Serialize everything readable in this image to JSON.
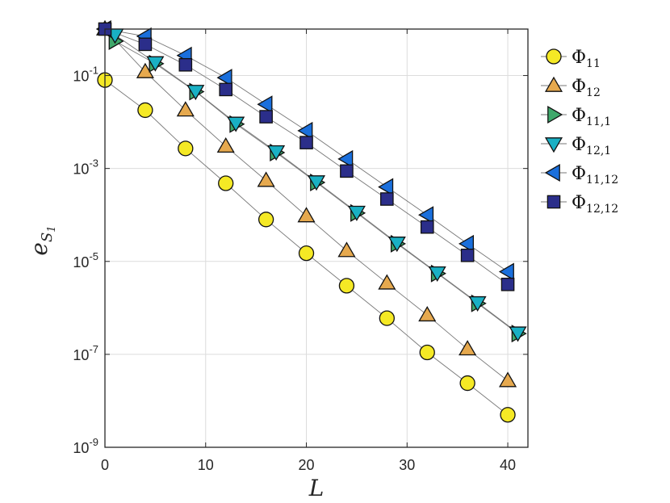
{
  "chart_data": {
    "type": "scatter",
    "x_axis": {
      "label": "L",
      "ticks": [
        "0",
        "10",
        "20",
        "30",
        "40"
      ],
      "range": [
        0,
        42
      ]
    },
    "y_axis": {
      "label_main": "e",
      "label_sub": "S",
      "label_subsub": "1",
      "scale": "log",
      "range": [
        1e-09,
        1
      ],
      "ticks": [
        {
          "base": "10",
          "exp": "-9",
          "value": 1e-09
        },
        {
          "base": "10",
          "exp": "-7",
          "value": 1e-07
        },
        {
          "base": "10",
          "exp": "-5",
          "value": 1e-05
        },
        {
          "base": "10",
          "exp": "-3",
          "value": 0.001
        },
        {
          "base": "10",
          "exp": "-1",
          "value": 0.1
        }
      ]
    },
    "grid": true,
    "legend_position": "outside-right",
    "series": [
      {
        "name": "Φ11",
        "base": "Φ",
        "sub": "11",
        "marker": "circle",
        "color": "#f5e925",
        "x": [
          0,
          4,
          8,
          12,
          16,
          20,
          24,
          28,
          32,
          36,
          40
        ],
        "y": [
          0.08,
          0.018,
          0.0027,
          0.00048,
          8e-05,
          1.5e-05,
          3e-06,
          6e-07,
          1.1e-07,
          2.4e-08,
          5e-09
        ]
      },
      {
        "name": "Φ12",
        "base": "Φ",
        "sub": "12",
        "marker": "triangle-up",
        "color": "#e6a94e",
        "x": [
          0,
          4,
          8,
          12,
          16,
          20,
          24,
          28,
          32,
          36,
          40
        ],
        "y": [
          1.0,
          0.12,
          0.018,
          0.003,
          0.00055,
          9.5e-05,
          1.7e-05,
          3.4e-06,
          7e-07,
          1.3e-07,
          2.7e-08
        ]
      },
      {
        "name": "Φ11,1",
        "base": "Φ",
        "sub": "11,1",
        "marker": "triangle-right",
        "color": "#3fa86b",
        "x": [
          1,
          5,
          9,
          13,
          17,
          21,
          25,
          29,
          33,
          37,
          41
        ],
        "y": [
          0.55,
          0.18,
          0.045,
          0.009,
          0.0022,
          0.0005,
          0.00011,
          2.4e-05,
          5.5e-06,
          1.25e-06,
          2.8e-07
        ]
      },
      {
        "name": "Φ12,1",
        "base": "Φ",
        "sub": "12,1",
        "marker": "triangle-down",
        "color": "#19b0c4",
        "x": [
          1,
          5,
          9,
          13,
          17,
          21,
          25,
          29,
          33,
          37,
          41
        ],
        "y": [
          0.75,
          0.19,
          0.046,
          0.0095,
          0.0023,
          0.00052,
          0.000115,
          2.5e-05,
          5.7e-06,
          1.3e-06,
          2.9e-07
        ]
      },
      {
        "name": "Φ11,12",
        "base": "Φ",
        "sub": "11,12",
        "marker": "triangle-left",
        "color": "#1a6fdc",
        "x": [
          0,
          4,
          8,
          12,
          16,
          20,
          24,
          28,
          32,
          36,
          40
        ],
        "y": [
          1.0,
          0.7,
          0.27,
          0.09,
          0.024,
          0.0065,
          0.0016,
          0.0004,
          0.0001,
          2.4e-05,
          6e-06
        ]
      },
      {
        "name": "Φ12,12",
        "base": "Φ",
        "sub": "12,12",
        "marker": "square",
        "color": "#2b2e8a",
        "x": [
          0,
          4,
          8,
          12,
          16,
          20,
          24,
          28,
          32,
          36,
          40
        ],
        "y": [
          1.0,
          0.47,
          0.17,
          0.05,
          0.013,
          0.0036,
          0.00088,
          0.00022,
          5.5e-05,
          1.35e-05,
          3.2e-06
        ]
      }
    ]
  }
}
